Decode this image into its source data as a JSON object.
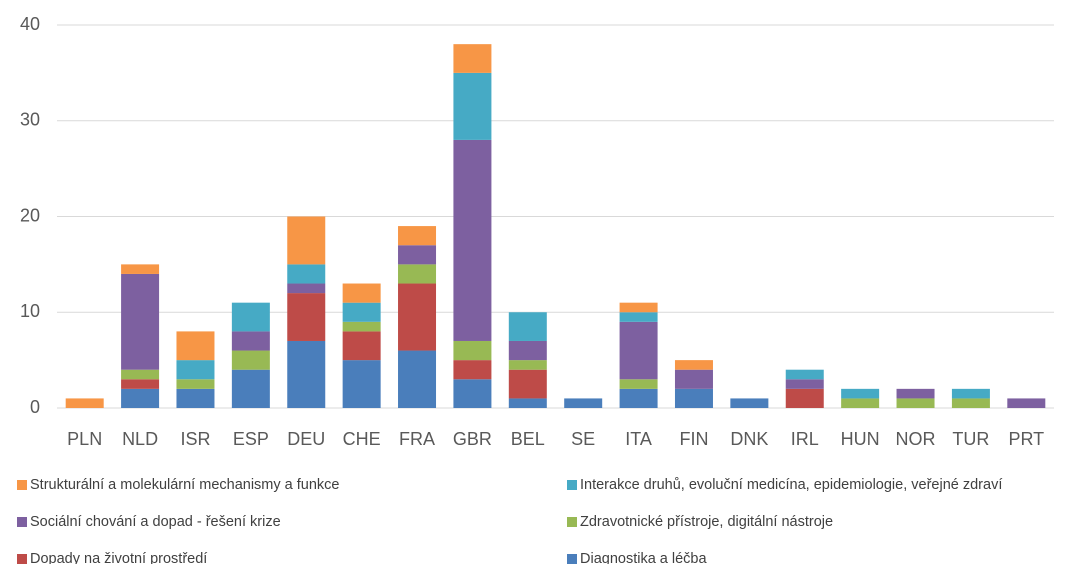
{
  "chart_data": {
    "type": "stacked_bar",
    "categories": [
      "PLN",
      "NLD",
      "ISR",
      "ESP",
      "DEU",
      "CHE",
      "FRA",
      "GBR",
      "BEL",
      "SE",
      "ITA",
      "FIN",
      "DNK",
      "IRL",
      "HUN",
      "NOR",
      "TUR",
      "PRT"
    ],
    "series": [
      {
        "name": "Diagnostika a léčba",
        "color": "#4a7ebb",
        "values": [
          0,
          2,
          2,
          4,
          7,
          5,
          6,
          3,
          1,
          1,
          2,
          2,
          1,
          0,
          0,
          0,
          0,
          0
        ]
      },
      {
        "name": "Dopady na životní prostředí",
        "color": "#be4b48",
        "values": [
          0,
          1,
          0,
          0,
          5,
          3,
          7,
          2,
          3,
          0,
          0,
          0,
          0,
          2,
          0,
          0,
          0,
          0
        ]
      },
      {
        "name": "Zdravotnické přístroje, digitální nástroje",
        "color": "#98b954",
        "values": [
          0,
          1,
          1,
          2,
          0,
          1,
          2,
          2,
          1,
          0,
          1,
          0,
          0,
          0,
          1,
          1,
          1,
          0
        ]
      },
      {
        "name": "Sociální chování a dopad - řešení krize",
        "color": "#7d60a0",
        "values": [
          0,
          10,
          0,
          2,
          1,
          0,
          2,
          21,
          2,
          0,
          6,
          2,
          0,
          1,
          0,
          1,
          0,
          1
        ]
      },
      {
        "name": "Interakce druhů, evoluční medicína, epidemiologie, veřejné zdraví",
        "color": "#46aac5",
        "values": [
          0,
          0,
          2,
          3,
          2,
          2,
          0,
          7,
          3,
          0,
          1,
          0,
          0,
          1,
          1,
          0,
          1,
          0
        ]
      },
      {
        "name": "Strukturální a molekulární mechanismy a funkce",
        "color": "#f79646",
        "values": [
          1,
          1,
          3,
          0,
          5,
          2,
          2,
          3,
          0,
          0,
          1,
          1,
          0,
          0,
          0,
          0,
          0,
          0
        ]
      }
    ],
    "ylim": [
      0,
      40
    ],
    "yticks": [
      0,
      10,
      20,
      30,
      40
    ],
    "grid": true
  }
}
